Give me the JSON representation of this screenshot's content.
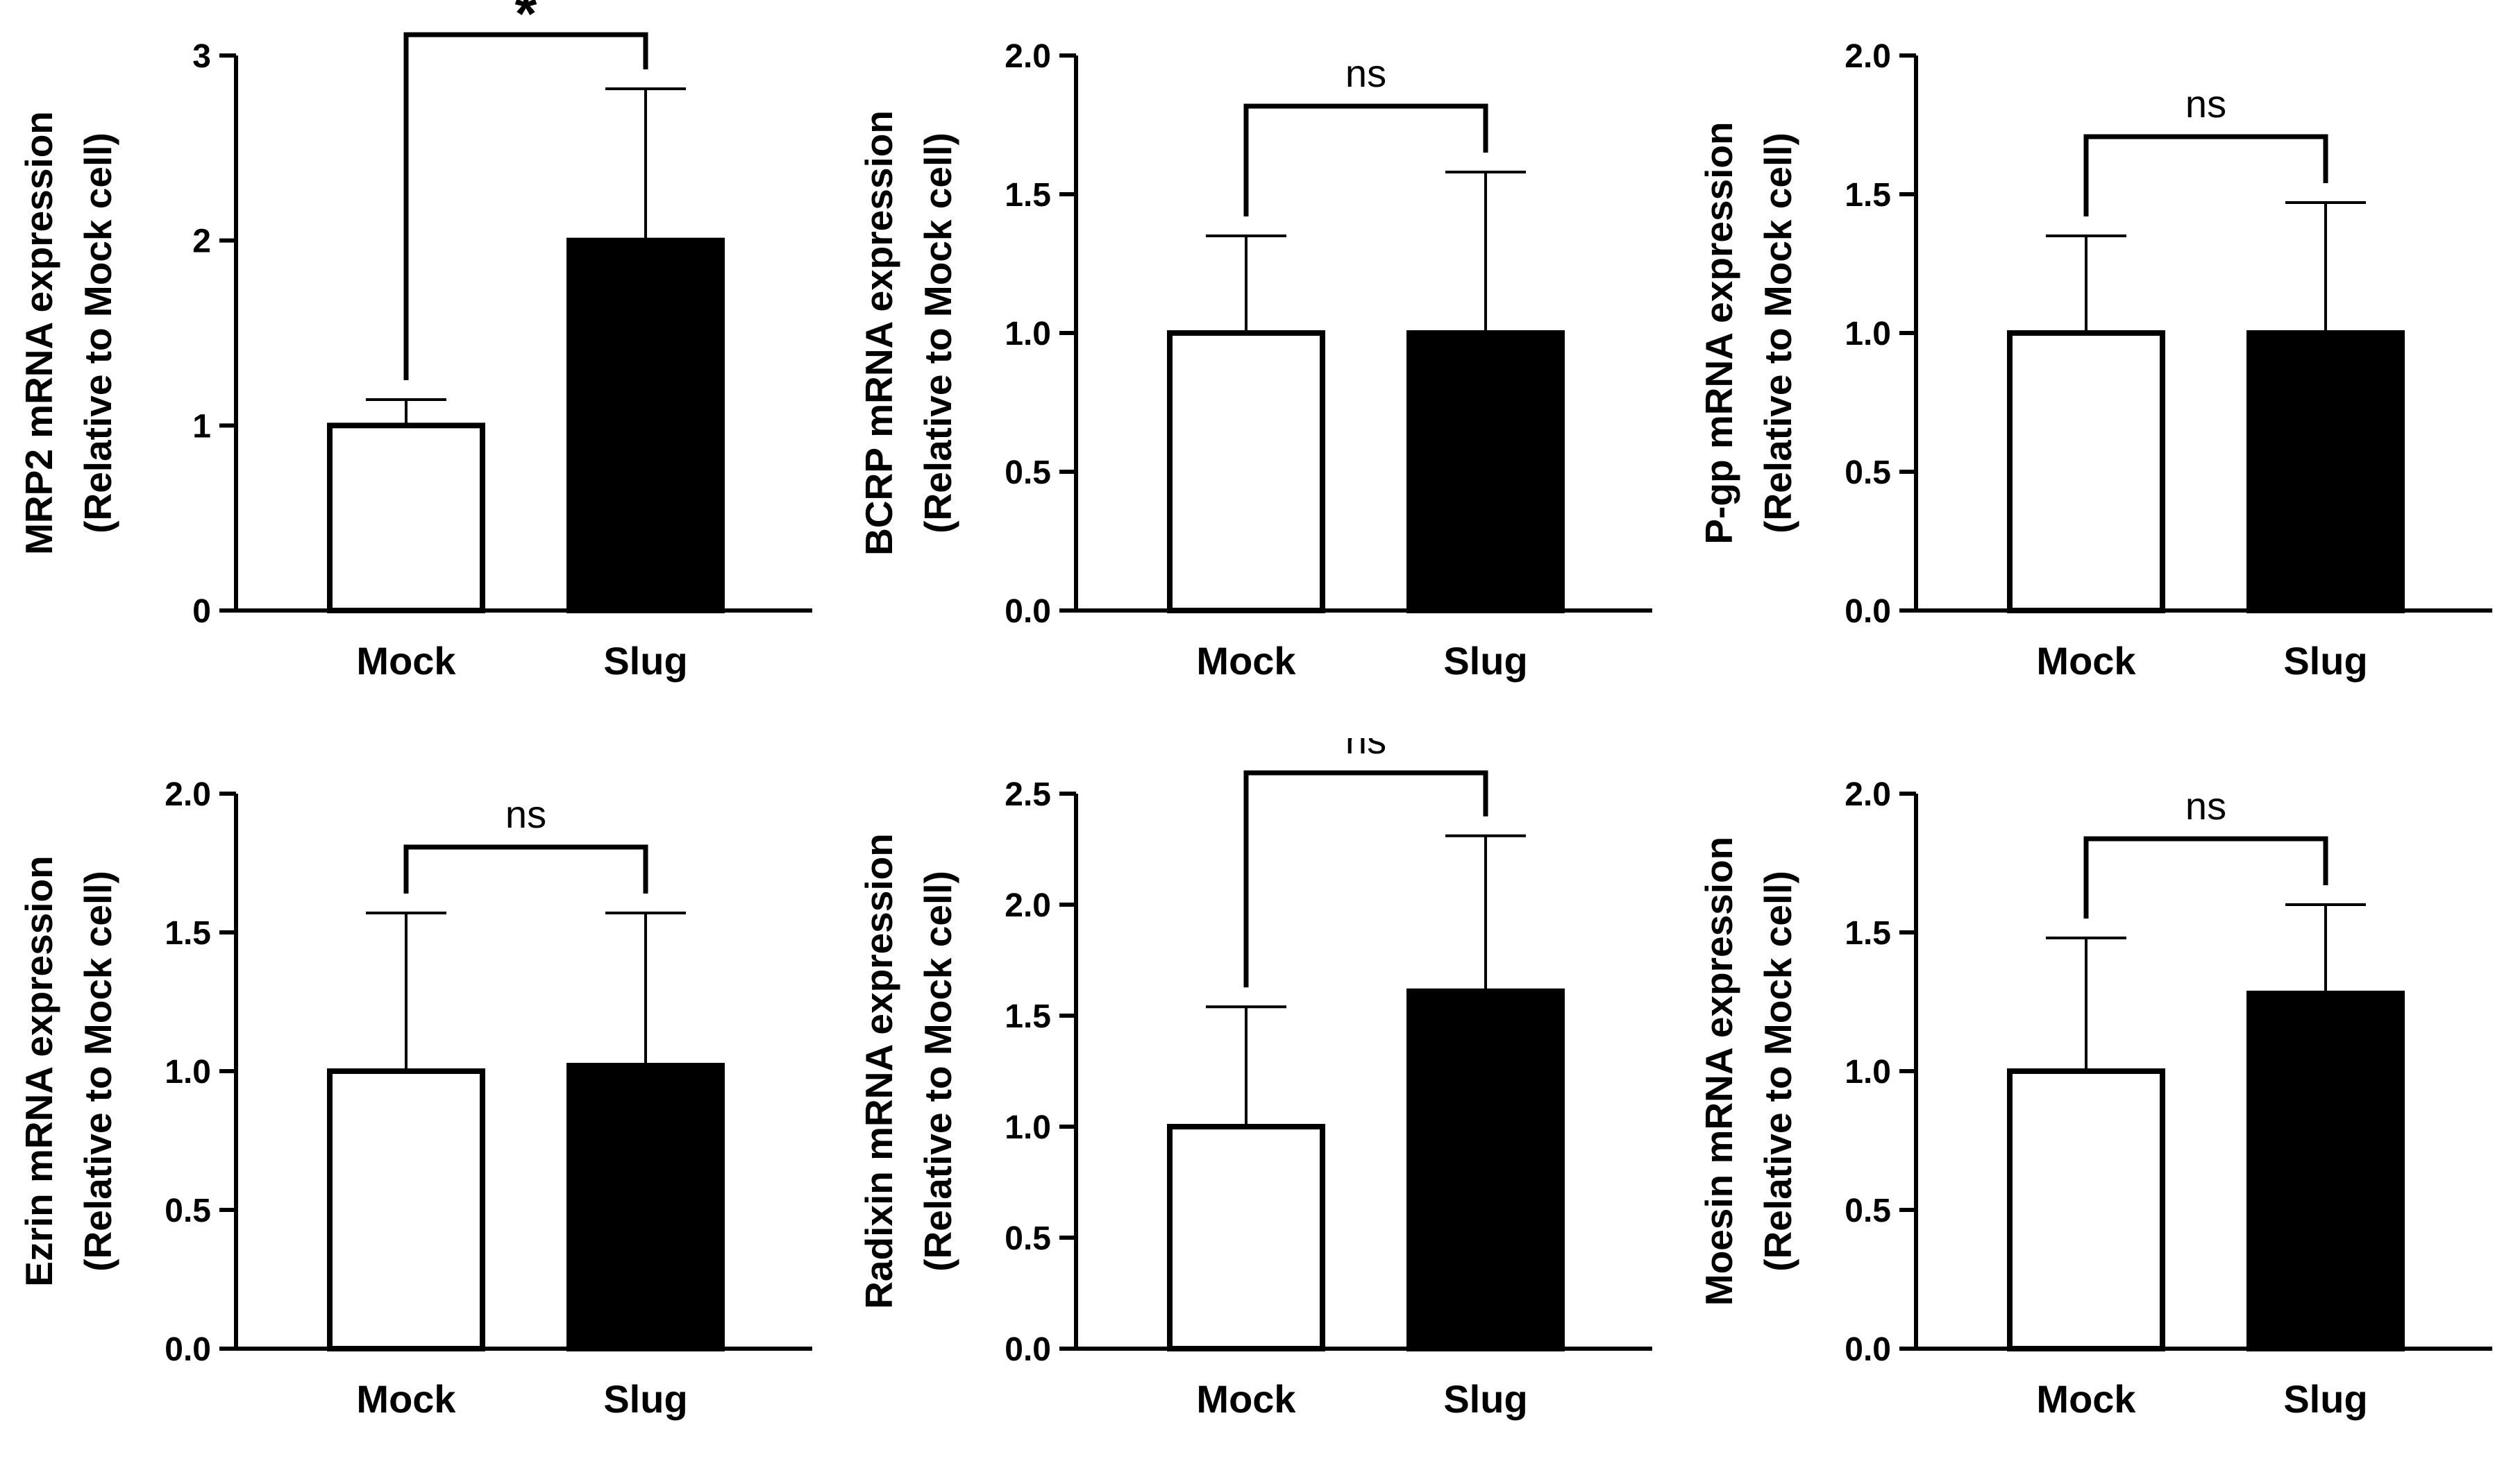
{
  "chart_data": [
    {
      "type": "bar",
      "categories": [
        "Mock",
        "Slug"
      ],
      "values": [
        1.0,
        2.0
      ],
      "error_upper": [
        1.14,
        2.82
      ],
      "bar_colors": [
        "#ffffff",
        "#000000"
      ],
      "ylabel_line1": "MRP2 mRNA expression",
      "ylabel_line2": "(Relative to Mock cell)",
      "ylim": [
        0,
        3
      ],
      "yticks": [
        0,
        1,
        2,
        3
      ],
      "ytick_labels": [
        "0",
        "1",
        "2",
        "3"
      ],
      "significance": "*"
    },
    {
      "type": "bar",
      "categories": [
        "Mock",
        "Slug"
      ],
      "values": [
        1.0,
        1.0
      ],
      "error_upper": [
        1.35,
        1.58
      ],
      "bar_colors": [
        "#ffffff",
        "#000000"
      ],
      "ylabel_line1": "BCRP mRNA expression",
      "ylabel_line2": "(Relative to Mock cell)",
      "ylim": [
        0,
        2.0
      ],
      "yticks": [
        0,
        0.5,
        1.0,
        1.5,
        2.0
      ],
      "ytick_labels": [
        "0.0",
        "0.5",
        "1.0",
        "1.5",
        "2.0"
      ],
      "significance": "ns"
    },
    {
      "type": "bar",
      "categories": [
        "Mock",
        "Slug"
      ],
      "values": [
        1.0,
        1.0
      ],
      "error_upper": [
        1.35,
        1.47
      ],
      "bar_colors": [
        "#ffffff",
        "#000000"
      ],
      "ylabel_line1": "P-gp mRNA expression",
      "ylabel_line2": "(Relative to Mock cell)",
      "ylim": [
        0,
        2.0
      ],
      "yticks": [
        0,
        0.5,
        1.0,
        1.5,
        2.0
      ],
      "ytick_labels": [
        "0.0",
        "0.5",
        "1.0",
        "1.5",
        "2.0"
      ],
      "significance": "ns"
    },
    {
      "type": "bar",
      "categories": [
        "Mock",
        "Slug"
      ],
      "values": [
        1.0,
        1.02
      ],
      "error_upper": [
        1.57,
        1.57
      ],
      "bar_colors": [
        "#ffffff",
        "#000000"
      ],
      "ylabel_line1": "Ezrin mRNA expression",
      "ylabel_line2": "(Relative to Mock cell)",
      "ylim": [
        0,
        2.0
      ],
      "yticks": [
        0,
        0.5,
        1.0,
        1.5,
        2.0
      ],
      "ytick_labels": [
        "0.0",
        "0.5",
        "1.0",
        "1.5",
        "2.0"
      ],
      "significance": "ns"
    },
    {
      "type": "bar",
      "categories": [
        "Mock",
        "Slug"
      ],
      "values": [
        1.0,
        1.61
      ],
      "error_upper": [
        1.54,
        2.31
      ],
      "bar_colors": [
        "#ffffff",
        "#000000"
      ],
      "ylabel_line1": "Radixin mRNA expression",
      "ylabel_line2": "(Relative to Mock cell)",
      "ylim": [
        0,
        2.5
      ],
      "yticks": [
        0,
        0.5,
        1.0,
        1.5,
        2.0,
        2.5
      ],
      "ytick_labels": [
        "0.0",
        "0.5",
        "1.0",
        "1.5",
        "2.0",
        "2.5"
      ],
      "significance": "ns"
    },
    {
      "type": "bar",
      "categories": [
        "Mock",
        "Slug"
      ],
      "values": [
        1.0,
        1.28
      ],
      "error_upper": [
        1.48,
        1.6
      ],
      "bar_colors": [
        "#ffffff",
        "#000000"
      ],
      "ylabel_line1": "Moesin mRNA expression",
      "ylabel_line2": "(Relative to Mock cell)",
      "ylim": [
        0,
        2.0
      ],
      "yticks": [
        0,
        0.5,
        1.0,
        1.5,
        2.0
      ],
      "ytick_labels": [
        "0.0",
        "0.5",
        "1.0",
        "1.5",
        "2.0"
      ],
      "significance": "ns"
    }
  ]
}
